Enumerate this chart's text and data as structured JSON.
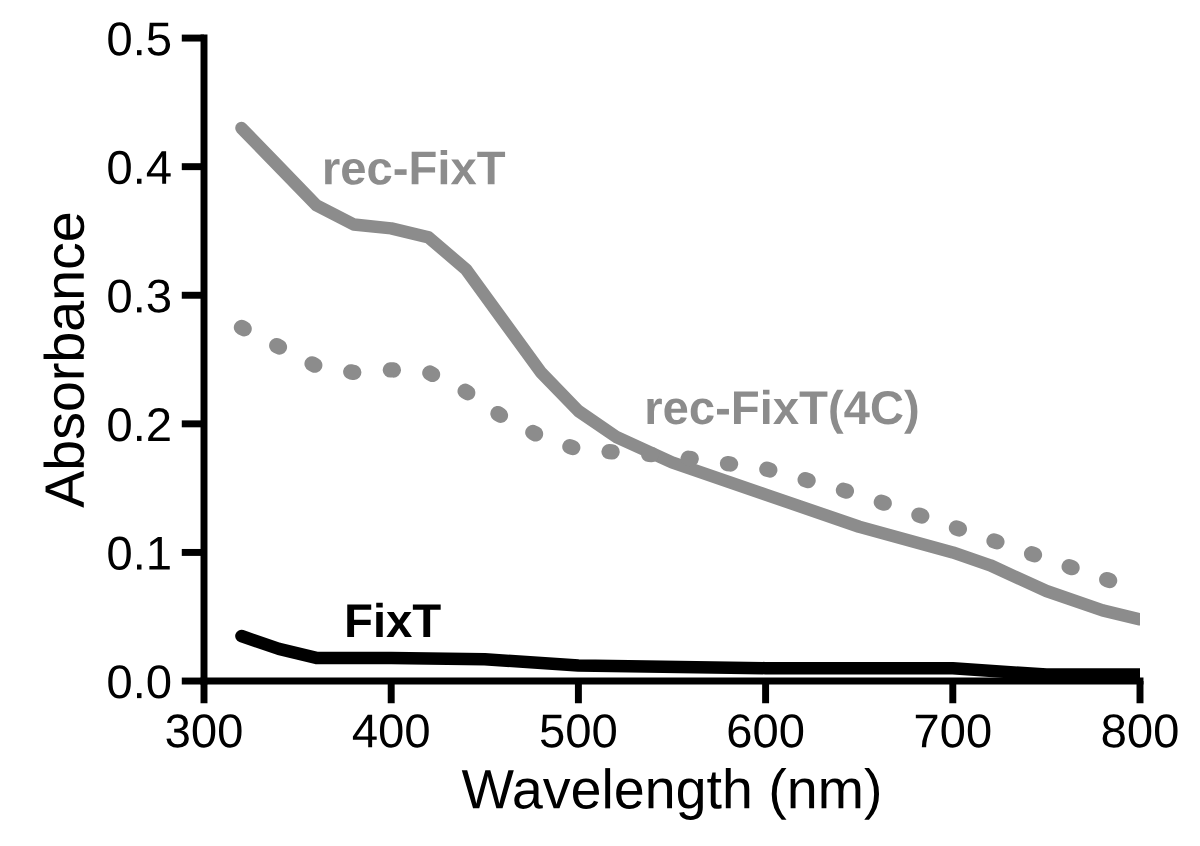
{
  "chart_data": {
    "type": "line",
    "xlabel": "Wavelength (nm)",
    "ylabel": "Absorbance",
    "xlim": [
      300,
      800
    ],
    "xticks": [
      300,
      400,
      500,
      600,
      700,
      800
    ],
    "ylim": [
      0,
      0.5
    ],
    "yticks": [
      {
        "value": 0,
        "label": "0.0"
      },
      0.1,
      0.2,
      0.3,
      0.4,
      0.5
    ],
    "grid": false,
    "legend": false,
    "marker": "none",
    "series": [
      {
        "name": "rec-FixT",
        "color": "#8c8c8c",
        "line_style": "solid",
        "x": [
          320,
          340,
          360,
          380,
          400,
          420,
          440,
          460,
          480,
          500,
          520,
          550,
          600,
          650,
          700,
          720,
          750,
          780,
          800
        ],
        "values": [
          0.43,
          0.4,
          0.37,
          0.355,
          0.352,
          0.345,
          0.32,
          0.28,
          0.24,
          0.21,
          0.19,
          0.17,
          0.145,
          0.12,
          0.1,
          0.09,
          0.07,
          0.055,
          0.048
        ]
      },
      {
        "name": "rec-FixT(4C)",
        "color": "#8c8c8c",
        "line_style": "dotted",
        "x": [
          320,
          340,
          360,
          380,
          400,
          420,
          440,
          460,
          480,
          500,
          550,
          600,
          650,
          700,
          750,
          800
        ],
        "values": [
          0.275,
          0.26,
          0.245,
          0.24,
          0.242,
          0.24,
          0.225,
          0.205,
          0.19,
          0.18,
          0.175,
          0.165,
          0.145,
          0.12,
          0.095,
          0.07
        ]
      },
      {
        "name": "FixT",
        "color": "#000000",
        "line_style": "solid",
        "x": [
          320,
          340,
          360,
          400,
          450,
          500,
          600,
          700,
          750,
          800
        ],
        "values": [
          0.035,
          0.025,
          0.018,
          0.018,
          0.017,
          0.012,
          0.01,
          0.01,
          0.005,
          0.005
        ]
      }
    ]
  }
}
